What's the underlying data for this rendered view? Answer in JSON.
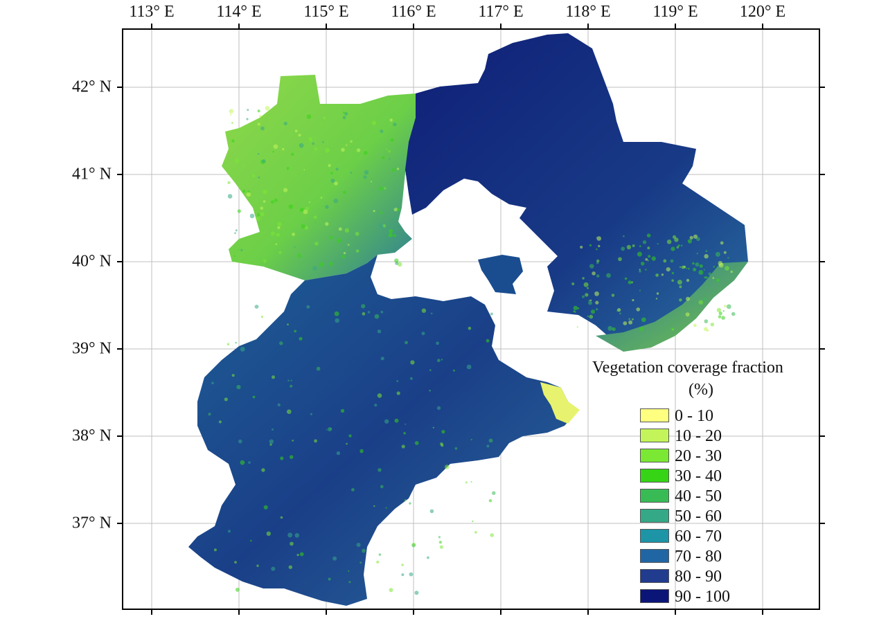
{
  "map": {
    "lon_labels": [
      "113° E",
      "114° E",
      "115° E",
      "116° E",
      "117° E",
      "118° E",
      "119° E",
      "120° E"
    ],
    "lat_labels": [
      "42° N",
      "41° N",
      "40° N",
      "39° N",
      "38° N",
      "37° N"
    ],
    "colors": {
      "frame": "#000000",
      "gridline": "#bfbfbf",
      "low_veg": "#8fd84a",
      "mid_veg": "#2a6fa0",
      "high_veg": "#0f1f77"
    }
  },
  "legend": {
    "title_line1": "Vegetation coverage fraction",
    "title_line2": "(%)",
    "classes": [
      {
        "label": "0 - 10",
        "color": "#ffff80"
      },
      {
        "label": "10 - 20",
        "color": "#c3f55a"
      },
      {
        "label": "20 - 30",
        "color": "#7be833"
      },
      {
        "label": "30 - 40",
        "color": "#35d414"
      },
      {
        "label": "40 - 50",
        "color": "#38bb55"
      },
      {
        "label": "50 - 60",
        "color": "#34a887"
      },
      {
        "label": "60 - 70",
        "color": "#1d95a7"
      },
      {
        "label": "70 - 80",
        "color": "#2066a4"
      },
      {
        "label": "80 - 90",
        "color": "#213b8e"
      },
      {
        "label": "90 - 100",
        "color": "#0b1577"
      }
    ]
  }
}
